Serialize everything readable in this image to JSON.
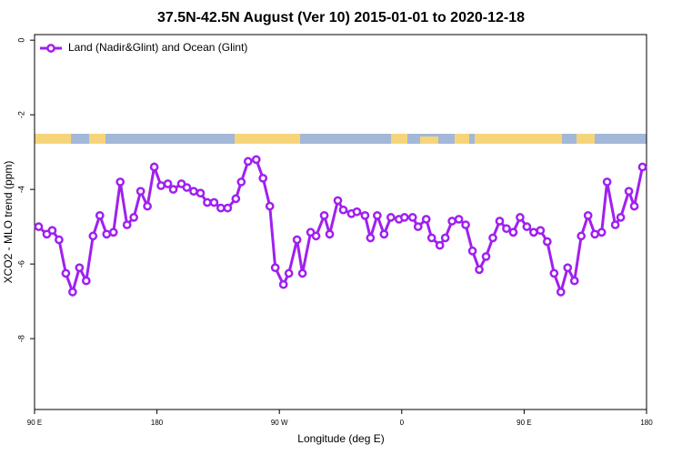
{
  "chart_data": {
    "type": "line",
    "title": "37.5N-42.5N August (Ver 10)   2015-01-01 to 2020-12-18",
    "x_label": "Longitude (deg E)",
    "y_label": "XCO2 - MLO trend (ppm)",
    "legend": "top-left",
    "x": [
      93,
      99,
      103,
      108,
      113,
      118,
      123,
      128,
      133,
      138,
      143,
      148,
      153,
      158,
      163,
      168,
      173,
      178,
      183,
      188,
      192,
      198,
      202,
      207,
      212,
      217,
      222,
      227,
      232,
      238,
      242,
      247,
      253,
      258,
      263,
      267,
      273,
      277,
      283,
      287,
      293,
      297,
      303,
      307,
      313,
      317,
      323,
      327,
      333,
      337,
      342,
      347,
      352,
      358,
      362,
      368,
      372,
      378,
      382,
      388,
      392,
      397,
      402,
      407,
      412,
      417,
      422,
      427,
      432,
      437,
      442,
      447,
      452,
      457,
      462,
      467,
      472,
      477,
      482,
      487,
      492,
      497,
      502,
      507,
      511,
      517,
      521,
      527,
      531,
      537
    ],
    "series": [
      {
        "name": "Land (Nadir&Glint) and Ocean (Glint)",
        "color": "#a020f0",
        "values": [
          -5.0,
          -5.2,
          -5.1,
          -5.35,
          -6.25,
          -6.75,
          -6.1,
          -6.45,
          -5.25,
          -4.7,
          -5.2,
          -5.15,
          -3.8,
          -4.95,
          -4.75,
          -4.05,
          -4.45,
          -3.4,
          -3.9,
          -3.85,
          -4.0,
          -3.85,
          -3.95,
          -4.05,
          -4.1,
          -4.35,
          -4.35,
          -4.5,
          -4.5,
          -4.25,
          -3.8,
          -3.25,
          -3.2,
          -3.7,
          -4.45,
          -6.1,
          -6.55,
          -6.25,
          -5.35,
          -6.25,
          -5.15,
          -5.25,
          -4.7,
          -5.2,
          -4.3,
          -4.55,
          -4.65,
          -4.6,
          -4.7,
          -5.3,
          -4.7,
          -5.2,
          -4.75,
          -4.8,
          -4.75,
          -4.75,
          -5.0,
          -4.8,
          -5.3,
          -5.5,
          -5.3,
          -4.85,
          -4.8,
          -4.95,
          -5.65,
          -6.15,
          -5.8,
          -5.3,
          -4.85,
          -5.05,
          -5.15,
          -4.75,
          -5.0,
          -5.15,
          -5.1,
          -5.4,
          -6.25,
          -6.75,
          -6.1,
          -6.45,
          -5.25,
          -4.7,
          -5.2,
          -5.15,
          -3.8,
          -4.95,
          -4.75,
          -4.05,
          -4.45,
          -3.4
        ]
      }
    ],
    "xlim": [
      90,
      540
    ],
    "xticks": [
      {
        "value": 90,
        "label": "90 E"
      },
      180,
      {
        "value": 270,
        "label": "90 W"
      },
      {
        "value": 360,
        "label": "0"
      },
      {
        "value": 450,
        "label": "90 E"
      },
      {
        "value": 540,
        "label": "180"
      }
    ],
    "ylim": [
      -9.9,
      0.15
    ],
    "yticks": [
      0,
      -2,
      -4,
      -6,
      -8
    ]
  }
}
